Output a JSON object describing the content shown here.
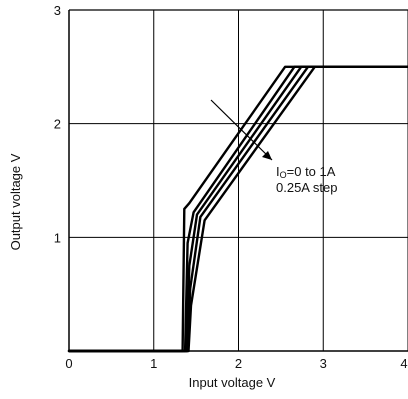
{
  "chart_data": {
    "type": "line",
    "xlabel": "Input voltage  V",
    "ylabel": "Output voltage  V",
    "xlim": [
      0,
      4
    ],
    "ylim": [
      0,
      3
    ],
    "x_ticks": [
      "0",
      "1",
      "2",
      "3",
      "4"
    ],
    "y_ticks": [
      "1",
      "2",
      "3"
    ],
    "grid": true,
    "annotation": {
      "prefix": "I",
      "subscript": "O",
      "line1_rest": "=0 to 1A",
      "line2": "0.25A step"
    },
    "series": [
      {
        "x": [
          0,
          1.34,
          1.36,
          1.42,
          2.55,
          4.1
        ],
        "y": [
          0,
          0,
          1.25,
          1.3,
          2.5,
          2.5
        ]
      },
      {
        "x": [
          0,
          1.37,
          1.4,
          1.47,
          2.66,
          4.1
        ],
        "y": [
          0,
          0,
          0.95,
          1.22,
          2.5,
          2.5
        ]
      },
      {
        "x": [
          0,
          1.39,
          1.42,
          1.51,
          2.74,
          4.1
        ],
        "y": [
          0,
          0,
          0.75,
          1.2,
          2.5,
          2.5
        ]
      },
      {
        "x": [
          0,
          1.4,
          1.43,
          1.55,
          2.82,
          4.1
        ],
        "y": [
          0,
          0,
          0.55,
          1.18,
          2.5,
          2.5
        ]
      },
      {
        "x": [
          0,
          1.41,
          1.44,
          1.6,
          2.9,
          4.1
        ],
        "y": [
          0,
          0,
          0.4,
          1.15,
          2.5,
          2.5
        ]
      }
    ],
    "colors": {
      "line": "#000000",
      "grid": "#000000"
    }
  }
}
